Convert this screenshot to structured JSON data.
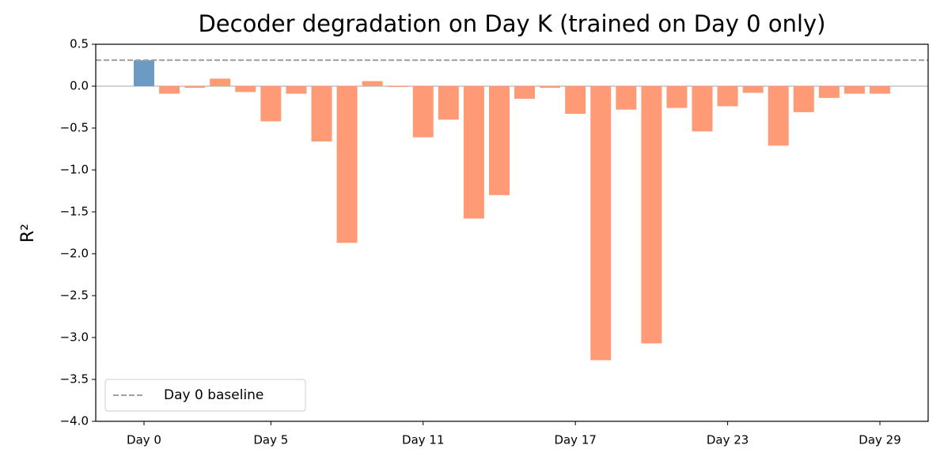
{
  "chart_data": {
    "type": "bar",
    "title": "Decoder degradation on Day K (trained on Day 0 only)",
    "y_label": "R²",
    "categories": [
      "Day 0",
      null,
      null,
      null,
      null,
      "Day 5",
      null,
      null,
      null,
      null,
      null,
      "Day 11",
      null,
      null,
      null,
      null,
      null,
      "Day 17",
      null,
      null,
      null,
      null,
      null,
      "Day 23",
      null,
      null,
      null,
      null,
      null,
      "Day 29"
    ],
    "values": [
      0.31,
      -0.09,
      -0.02,
      0.09,
      -0.07,
      -0.42,
      -0.09,
      -0.66,
      -1.87,
      0.06,
      -0.01,
      -0.61,
      -0.4,
      -1.58,
      -1.3,
      -0.15,
      -0.02,
      -0.33,
      -3.27,
      -0.28,
      -3.07,
      -0.26,
      -0.54,
      -0.24,
      -0.08,
      -0.71,
      -0.31,
      -0.14,
      -0.09,
      -0.09
    ],
    "colors": [
      "#6b9bc3",
      "#ff9a76"
    ],
    "ylim": [
      -4.0,
      0.5
    ],
    "yticks": [
      {
        "value": -4.0,
        "label": "−4.0"
      },
      {
        "value": -3.5,
        "label": "−3.5"
      },
      {
        "value": -3.0,
        "label": "−3.0"
      },
      {
        "value": -2.5,
        "label": "−2.5"
      },
      {
        "value": -2.0,
        "label": "−2.0"
      },
      {
        "value": -1.5,
        "label": "−1.5"
      },
      {
        "value": -1.0,
        "label": "−1.0"
      },
      {
        "value": -0.5,
        "label": "−0.5"
      },
      {
        "value": 0,
        "label": "0.0"
      },
      0.5
    ],
    "baseline": {
      "value": 0.31,
      "label": "Day 0 baseline",
      "color": "#a0a0a0"
    },
    "legend": "lower left"
  }
}
